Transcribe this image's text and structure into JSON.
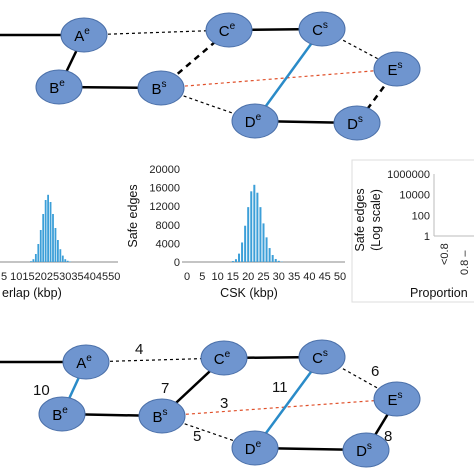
{
  "colors": {
    "node_fill": "#6f95cf",
    "node_stroke": "#4a6fa8",
    "solid_edge": "#000000",
    "blue_edge": "#2a8bc8",
    "red_dotted_edge": "#e0502a",
    "bar_color": "#3c9fd8",
    "panel_border": "#dddddd"
  },
  "graph_top": {
    "nodes": [
      {
        "id": "Ae",
        "base": "A",
        "sup": "e"
      },
      {
        "id": "Be",
        "base": "B",
        "sup": "e"
      },
      {
        "id": "Ce",
        "base": "C",
        "sup": "e"
      },
      {
        "id": "Bs",
        "base": "B",
        "sup": "s"
      },
      {
        "id": "De",
        "base": "D",
        "sup": "e"
      },
      {
        "id": "Cs",
        "base": "C",
        "sup": "s"
      },
      {
        "id": "Es",
        "base": "E",
        "sup": "s"
      },
      {
        "id": "Ds",
        "base": "D",
        "sup": "s"
      }
    ]
  },
  "graph_bottom": {
    "nodes": [
      {
        "id": "Ae",
        "base": "A",
        "sup": "e"
      },
      {
        "id": "Be",
        "base": "B",
        "sup": "e"
      },
      {
        "id": "Ce",
        "base": "C",
        "sup": "e"
      },
      {
        "id": "Bs",
        "base": "B",
        "sup": "s"
      },
      {
        "id": "De",
        "base": "D",
        "sup": "e"
      },
      {
        "id": "Cs",
        "base": "C",
        "sup": "s"
      },
      {
        "id": "Es",
        "base": "E",
        "sup": "s"
      },
      {
        "id": "Ds",
        "base": "D",
        "sup": "s"
      }
    ],
    "edge_weights": {
      "ae_ce": "4",
      "ae_be": "10",
      "bs_ce": "7",
      "bs_es": "3",
      "cs_de": "11",
      "cs_es": "6",
      "bs_de": "5",
      "es_ds": "8"
    }
  },
  "chart_data": [
    {
      "type": "bar",
      "title": "",
      "xlabel": "erlap (kbp)",
      "ylabel": "",
      "x_ticks": [
        "5",
        "10",
        "15",
        "20",
        "25",
        "30",
        "35",
        "40",
        "45",
        "50"
      ],
      "xlim": [
        0,
        50
      ],
      "ylim": [
        0,
        20000
      ],
      "x": [
        16,
        17,
        18,
        19,
        20,
        21,
        22,
        23,
        24,
        25,
        26,
        27,
        28,
        29,
        30,
        31,
        32
      ],
      "values": [
        200,
        700,
        2000,
        4500,
        8000,
        12000,
        15500,
        16800,
        15000,
        12000,
        8500,
        5500,
        3200,
        1600,
        700,
        300,
        100
      ]
    },
    {
      "type": "bar",
      "title": "",
      "xlabel": "CSK (kbp)",
      "ylabel": "Safe edges",
      "y_ticks": [
        "0",
        "4000",
        "8000",
        "12000",
        "16000",
        "20000"
      ],
      "x_ticks": [
        "0",
        "5",
        "10",
        "15",
        "20",
        "25",
        "30",
        "35",
        "40",
        "45",
        "50"
      ],
      "xlim": [
        0,
        50
      ],
      "ylim": [
        0,
        20000
      ],
      "x": [
        15,
        16,
        17,
        18,
        19,
        20,
        21,
        22,
        23,
        24,
        25,
        26,
        27,
        28,
        29,
        30,
        31
      ],
      "values": [
        200,
        600,
        1800,
        4200,
        7800,
        11800,
        15200,
        16600,
        14900,
        11800,
        8300,
        5300,
        3000,
        1500,
        650,
        250,
        80
      ]
    },
    {
      "type": "bar",
      "title": "",
      "xlabel": "Proportion",
      "ylabel": "Safe edges (Log scale)",
      "y_scale": "log",
      "y_ticks": [
        "1",
        "100",
        "10000",
        "1000000"
      ],
      "x_ticks": [
        "<0.8",
        "0.8 –"
      ],
      "ylim": [
        1,
        1000000
      ]
    }
  ]
}
